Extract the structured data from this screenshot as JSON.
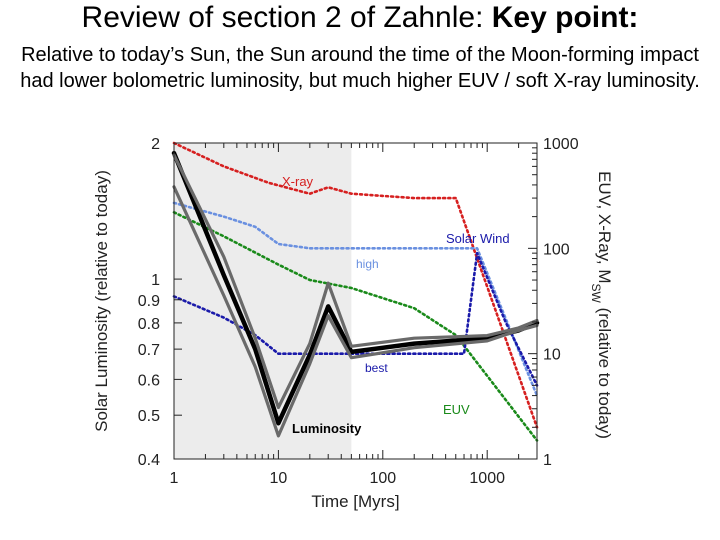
{
  "slide": {
    "title_main": "Review of section 2 of Zahnle: ",
    "title_bold": "Key point:",
    "body": "Relative to today’s Sun, the Sun around the time of the Moon-forming impact had lower bolometric luminosity, but much higher EUV / soft X-ray luminosity."
  },
  "chart_data": {
    "type": "line",
    "xlabel": "Time [Myrs]",
    "ylabel_left": "Solar Luminosity (relative to today)",
    "ylabel_right": "EUV, X-Ray, M_SW (relative to today)",
    "x_scale": "log",
    "xlim": [
      1,
      3000
    ],
    "xticks": [
      {
        "v": 1,
        "label": "1"
      },
      {
        "v": 10,
        "label": "10"
      },
      {
        "v": 100,
        "label": "100"
      },
      {
        "v": 1000,
        "label": "1000"
      }
    ],
    "ylim_left": [
      0.4,
      2
    ],
    "yticks_left": [
      {
        "v": 2,
        "label": "2"
      },
      {
        "v": 1,
        "label": "1"
      },
      {
        "v": 0.9,
        "label": "0.9"
      },
      {
        "v": 0.8,
        "label": "0.8"
      },
      {
        "v": 0.7,
        "label": "0.7"
      },
      {
        "v": 0.6,
        "label": "0.6"
      },
      {
        "v": 0.5,
        "label": "0.5"
      },
      {
        "v": 0.4,
        "label": "0.4"
      }
    ],
    "ylim_right": [
      1,
      1000
    ],
    "yticks_right": [
      {
        "v": 1000,
        "label": "1000"
      },
      {
        "v": 100,
        "label": "100"
      },
      {
        "v": 10,
        "label": "10"
      },
      {
        "v": 1,
        "label": "1"
      }
    ],
    "shaded_region_x": [
      1,
      50
    ],
    "series": [
      {
        "name": "X-ray",
        "axis": "right",
        "color": "#d62020",
        "dash": "dot",
        "points": [
          [
            1,
            1000
          ],
          [
            3,
            600
          ],
          [
            8,
            420
          ],
          [
            20,
            330
          ],
          [
            30,
            380
          ],
          [
            50,
            330
          ],
          [
            200,
            300
          ],
          [
            500,
            300
          ],
          [
            3000,
            2
          ]
        ]
      },
      {
        "name": "Solar Wind high",
        "axis": "right",
        "color": "#6a90e0",
        "dash": "dot",
        "points": [
          [
            1,
            270
          ],
          [
            3,
            200
          ],
          [
            6,
            160
          ],
          [
            10,
            110
          ],
          [
            20,
            100
          ],
          [
            50,
            100
          ],
          [
            300,
            100
          ],
          [
            800,
            100
          ],
          [
            3000,
            4
          ]
        ]
      },
      {
        "name": "EUV",
        "axis": "right",
        "color": "#1a8a1a",
        "dash": "dot",
        "points": [
          [
            1,
            220
          ],
          [
            3,
            130
          ],
          [
            10,
            70
          ],
          [
            20,
            50
          ],
          [
            50,
            42
          ],
          [
            200,
            27
          ],
          [
            500,
            15
          ],
          [
            3000,
            1.5
          ]
        ]
      },
      {
        "name": "Solar Wind best",
        "axis": "right",
        "color": "#1a1aaa",
        "dash": "dot",
        "points": [
          [
            1,
            35
          ],
          [
            3,
            22
          ],
          [
            6,
            15
          ],
          [
            10,
            10
          ],
          [
            50,
            10
          ],
          [
            300,
            10
          ],
          [
            600,
            10
          ],
          [
            800,
            90
          ],
          [
            1500,
            20
          ],
          [
            3000,
            5
          ]
        ]
      },
      {
        "name": "Luminosity",
        "axis": "left",
        "color": "#000000",
        "dash": "solid",
        "points": [
          [
            1,
            1.9
          ],
          [
            3,
            1.02
          ],
          [
            6,
            0.7
          ],
          [
            10,
            0.48
          ],
          [
            20,
            0.68
          ],
          [
            30,
            0.87
          ],
          [
            50,
            0.69
          ],
          [
            200,
            0.72
          ],
          [
            1000,
            0.74
          ],
          [
            2000,
            0.77
          ],
          [
            3000,
            0.8
          ]
        ]
      },
      {
        "name": "Luminosity upper",
        "axis": "left",
        "color": "#6a6a6a",
        "dash": "solid",
        "points": [
          [
            1,
            1.88
          ],
          [
            3,
            1.12
          ],
          [
            6,
            0.74
          ],
          [
            10,
            0.52
          ],
          [
            20,
            0.72
          ],
          [
            30,
            0.98
          ],
          [
            50,
            0.71
          ],
          [
            200,
            0.74
          ],
          [
            1000,
            0.75
          ],
          [
            2000,
            0.78
          ],
          [
            3000,
            0.81
          ]
        ]
      },
      {
        "name": "Luminosity lower",
        "axis": "left",
        "color": "#6a6a6a",
        "dash": "solid",
        "points": [
          [
            1,
            1.6
          ],
          [
            3,
            0.92
          ],
          [
            6,
            0.64
          ],
          [
            10,
            0.45
          ],
          [
            20,
            0.65
          ],
          [
            30,
            0.83
          ],
          [
            50,
            0.67
          ],
          [
            200,
            0.705
          ],
          [
            1000,
            0.73
          ],
          [
            2000,
            0.77
          ],
          [
            3000,
            0.79
          ]
        ]
      }
    ],
    "annotations": [
      {
        "text": "X-ray",
        "color": "#d62020"
      },
      {
        "text": "Solar Wind",
        "color": "#1a1aaa"
      },
      {
        "text": "high",
        "color": "#6a90e0"
      },
      {
        "text": "best",
        "color": "#1a1aaa"
      },
      {
        "text": "EUV",
        "color": "#1a8a1a"
      },
      {
        "text": "Luminosity",
        "color": "#000000"
      }
    ]
  }
}
